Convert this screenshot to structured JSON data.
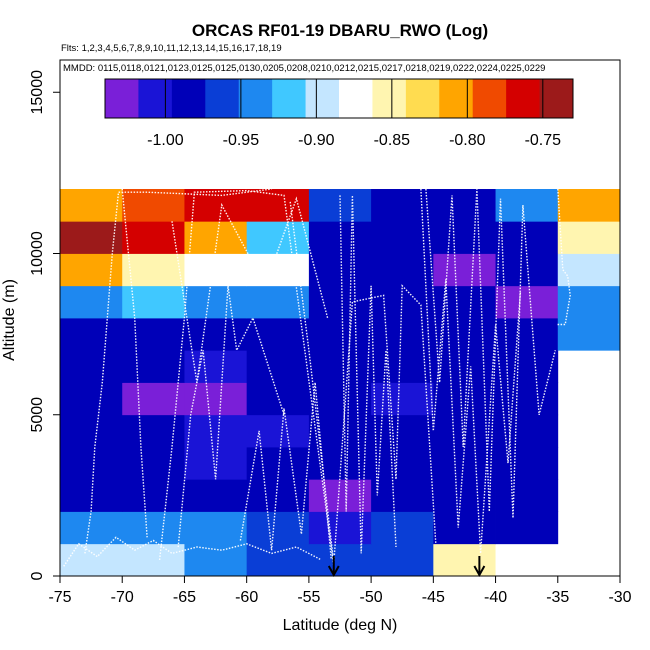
{
  "chart_data": {
    "type": "heatmap",
    "title": "ORCAS RF01-19 DBARU_RWO (Log)",
    "flights_label": "Flts: 1,2,3,4,5,6,7,8,9,10,11,12,13,14,15,16,17,18,19",
    "mmdd_label": "MMDD: 0115,0118,0121,0123,0125,0125,0130,0205,0208,0210,0212,0215,0217,0218,0219,0222,0224,0225,0229",
    "xlabel": "Latitude (deg N)",
    "ylabel": "Altitude (m)",
    "xlim": [
      -75,
      -30
    ],
    "ylim": [
      0,
      16000
    ],
    "x_ticks": [
      -75,
      -70,
      -65,
      -60,
      -55,
      -50,
      -45,
      -40,
      -35,
      -30
    ],
    "x_tick_labels": [
      "-75",
      "-70",
      "-65",
      "-60",
      "-55",
      "-50",
      "-45",
      "-40",
      "-35",
      "-30"
    ],
    "y_ticks": [
      0,
      5000,
      10000,
      15000
    ],
    "y_tick_labels": [
      "0",
      "5000",
      "10000",
      "15000"
    ],
    "colorbar": {
      "range": [
        -1.04,
        -0.73
      ],
      "ticks": [
        -1.0,
        -0.95,
        -0.9,
        -0.85,
        -0.8,
        -0.75
      ],
      "tick_labels": [
        "-1.00",
        "-0.95",
        "-0.90",
        "-0.85",
        "-0.80",
        "-0.75"
      ],
      "colors": [
        "#7a1fd8",
        "#1a14d6",
        "#0000b8",
        "#0a3ed6",
        "#1e88f0",
        "#40c8ff",
        "#c4e6ff",
        "#ffffff",
        "#fff5b0",
        "#ffdc50",
        "#ffa500",
        "#f04a00",
        "#d40000",
        "#9c1a1a"
      ]
    },
    "lat_bin_edges": [
      -75,
      -70,
      -65,
      -60,
      -55,
      -50,
      -45,
      -40,
      -35,
      -30
    ],
    "alt_bin_edges": [
      0,
      1000,
      2000,
      3000,
      4000,
      5000,
      6000,
      7000,
      8000,
      9000,
      10000,
      11000,
      12000
    ],
    "cells": [
      [
        -0.9,
        -0.9,
        -0.93,
        -0.96,
        -0.96,
        -0.96,
        -0.86,
        -0.88,
        null
      ],
      [
        -0.95,
        -0.95,
        -0.95,
        -0.96,
        -1.0,
        -0.96,
        -0.99,
        -0.99,
        null
      ],
      [
        -0.99,
        -0.99,
        -0.99,
        -0.99,
        -1.02,
        -0.98,
        -0.98,
        -0.98,
        null
      ],
      [
        -0.99,
        -0.99,
        -1.0,
        -0.99,
        -0.99,
        -0.99,
        -0.98,
        -0.98,
        null
      ],
      [
        -0.99,
        -0.99,
        -1.0,
        -1.0,
        -0.99,
        -0.99,
        -0.98,
        -0.99,
        null
      ],
      [
        -0.98,
        -1.02,
        -1.03,
        -0.99,
        -0.99,
        -1.0,
        -0.98,
        -0.98,
        null
      ],
      [
        -0.99,
        -0.99,
        -1.0,
        -0.99,
        -0.99,
        -0.98,
        -0.99,
        -0.98,
        null
      ],
      [
        -0.98,
        -0.99,
        -0.99,
        -0.98,
        -0.99,
        -0.99,
        -0.98,
        -0.98,
        -0.95
      ],
      [
        -0.95,
        -0.91,
        -0.95,
        -0.95,
        -0.99,
        -0.98,
        -0.98,
        -1.03,
        -0.94
      ],
      [
        -0.81,
        -0.86,
        -0.87,
        -0.87,
        -0.99,
        -0.98,
        -1.03,
        -0.99,
        -0.89
      ],
      [
        -0.74,
        -0.77,
        -0.8,
        -0.92,
        -0.99,
        -0.99,
        -0.98,
        -0.98,
        -0.86
      ],
      [
        -0.8,
        -0.79,
        -0.77,
        -0.76,
        -0.97,
        -0.98,
        -0.99,
        -0.94,
        -0.8
      ]
    ],
    "markers": [
      {
        "lat": -53.0,
        "label": "down-arrow"
      },
      {
        "lat": -41.3,
        "label": "down-arrow"
      }
    ],
    "flight_tracks": {
      "color": "#ffffff",
      "segments": [
        [
          [
            -73.0,
            700
          ],
          [
            -72.5,
            2000
          ],
          [
            -72.2,
            4000
          ],
          [
            -71.6,
            6000
          ],
          [
            -71.2,
            8000
          ],
          [
            -70.8,
            10000
          ],
          [
            -70.3,
            11900
          ],
          [
            -68.0,
            11900
          ],
          [
            -62.0,
            11800
          ],
          [
            -58.0,
            12000
          ]
        ],
        [
          [
            -70.0,
            12000
          ],
          [
            -69.0,
            8000
          ],
          [
            -68.5,
            4000
          ],
          [
            -68.0,
            1200
          ]
        ],
        [
          [
            -67.0,
            500
          ],
          [
            -66.0,
            4000
          ],
          [
            -65.0,
            8000
          ],
          [
            -64.2,
            11900
          ],
          [
            -60.0,
            11950
          ],
          [
            -57.0,
            11800
          ],
          [
            -53.0,
            300
          ]
        ],
        [
          [
            -65.5,
            900
          ],
          [
            -64.5,
            5000
          ],
          [
            -63.5,
            7000
          ],
          [
            -62.5,
            3000
          ],
          [
            -61.5,
            9000
          ],
          [
            -60.8,
            7000
          ],
          [
            -59.5,
            8000
          ],
          [
            -57.0,
            5000
          ]
        ],
        [
          [
            -66.0,
            11000
          ],
          [
            -64.0,
            6000
          ],
          [
            -62.0,
            11500
          ],
          [
            -58.5,
            9000
          ],
          [
            -56.0,
            11700
          ],
          [
            -53.5,
            8000
          ]
        ],
        [
          [
            -60.5,
            1100
          ],
          [
            -59.0,
            4500
          ],
          [
            -58.0,
            800
          ],
          [
            -57.0,
            5200
          ],
          [
            -55.6,
            1300
          ],
          [
            -54.5,
            6000
          ],
          [
            -53.2,
            500
          ]
        ],
        [
          [
            -56.5,
            11600
          ],
          [
            -55.0,
            7000
          ],
          [
            -53.0,
            400
          ],
          [
            -51.5,
            8500
          ],
          [
            -49.0,
            8700
          ],
          [
            -48.0,
            3000
          ],
          [
            -47.5,
            9000
          ],
          [
            -46.0,
            8400
          ],
          [
            -44.8,
            1000
          ]
        ],
        [
          [
            -45.6,
            12000
          ],
          [
            -44.5,
            6000
          ],
          [
            -43.5,
            11800
          ],
          [
            -42.6,
            4000
          ],
          [
            -41.5,
            12000
          ],
          [
            -40.5,
            2000
          ],
          [
            -39.6,
            11700
          ],
          [
            -38.6,
            1800
          ],
          [
            -37.8,
            11500
          ],
          [
            -36.5,
            5000
          ],
          [
            -35.2,
            7000
          ]
        ],
        [
          [
            -46.0,
            12000
          ],
          [
            -45.0,
            4500
          ],
          [
            -44.0,
            9200
          ],
          [
            -43.0,
            1500
          ],
          [
            -42.0,
            6500
          ],
          [
            -41.2,
            700
          ],
          [
            -40.0,
            7800
          ],
          [
            -39.0,
            3500
          ],
          [
            -38.0,
            8800
          ]
        ],
        [
          [
            -35.0,
            12000
          ],
          [
            -34.6,
            9500
          ],
          [
            -34.2,
            9300
          ],
          [
            -34.0,
            8700
          ],
          [
            -34.4,
            7800
          ],
          [
            -35.1,
            7800
          ]
        ],
        [
          [
            -52.5,
            11800
          ],
          [
            -52.0,
            2000
          ],
          [
            -51.5,
            11800
          ],
          [
            -50.8,
            700
          ],
          [
            -50.0,
            9000
          ],
          [
            -49.5,
            2500
          ],
          [
            -48.8,
            7000
          ],
          [
            -48.0,
            900
          ]
        ],
        [
          [
            -74.7,
            300
          ],
          [
            -73.5,
            1000
          ],
          [
            -72.0,
            600
          ],
          [
            -70.5,
            1200
          ],
          [
            -69.0,
            800
          ],
          [
            -67.5,
            1100
          ],
          [
            -66.0,
            700
          ],
          [
            -64.0,
            900
          ],
          [
            -62.0,
            800
          ],
          [
            -60.0,
            1000
          ],
          [
            -58.0,
            700
          ],
          [
            -56.0,
            900
          ],
          [
            -54.0,
            500
          ]
        ]
      ]
    }
  }
}
